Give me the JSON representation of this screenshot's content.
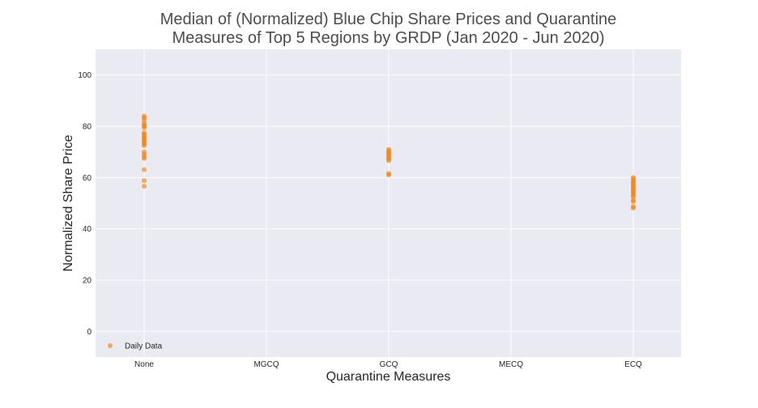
{
  "chart_data": {
    "type": "scatter",
    "title_line1": "Median of (Normalized) Blue Chip Share Prices and Quarantine",
    "title_line2": "Measures of Top 5 Regions by GRDP (Jan 2020 - Jun 2020)",
    "xlabel": "Quarantine Measures",
    "ylabel": "Normalized Share Price",
    "categories": [
      "None",
      "MGCQ",
      "GCQ",
      "MECQ",
      "ECQ"
    ],
    "ylim": [
      -10,
      110
    ],
    "yticks": [
      0,
      20,
      40,
      60,
      80,
      100
    ],
    "grid": true,
    "legend_position": "lower-left",
    "colors": {
      "point": "#f5830f",
      "plot_bg": "#eaeaf2",
      "grid": "#ffffff"
    },
    "series": [
      {
        "name": "Daily Data",
        "points": [
          {
            "x": "None",
            "y": 84.0
          },
          {
            "x": "None",
            "y": 83.3
          },
          {
            "x": "None",
            "y": 82.5
          },
          {
            "x": "None",
            "y": 81.2
          },
          {
            "x": "None",
            "y": 80.6
          },
          {
            "x": "None",
            "y": 80.0
          },
          {
            "x": "None",
            "y": 79.4
          },
          {
            "x": "None",
            "y": 77.5
          },
          {
            "x": "None",
            "y": 76.9
          },
          {
            "x": "None",
            "y": 76.2
          },
          {
            "x": "None",
            "y": 75.6
          },
          {
            "x": "None",
            "y": 75.0
          },
          {
            "x": "None",
            "y": 74.4
          },
          {
            "x": "None",
            "y": 73.7
          },
          {
            "x": "None",
            "y": 73.1
          },
          {
            "x": "None",
            "y": 72.5
          },
          {
            "x": "None",
            "y": 70.0
          },
          {
            "x": "None",
            "y": 69.1
          },
          {
            "x": "None",
            "y": 68.1
          },
          {
            "x": "None",
            "y": 67.5
          },
          {
            "x": "None",
            "y": 63.1
          },
          {
            "x": "None",
            "y": 58.8
          },
          {
            "x": "None",
            "y": 56.6
          },
          {
            "x": "GCQ",
            "y": 71.0
          },
          {
            "x": "GCQ",
            "y": 70.3
          },
          {
            "x": "GCQ",
            "y": 69.7
          },
          {
            "x": "GCQ",
            "y": 69.1
          },
          {
            "x": "GCQ",
            "y": 68.5
          },
          {
            "x": "GCQ",
            "y": 67.8
          },
          {
            "x": "GCQ",
            "y": 67.2
          },
          {
            "x": "GCQ",
            "y": 66.6
          },
          {
            "x": "GCQ",
            "y": 61.6
          },
          {
            "x": "GCQ",
            "y": 61.0
          },
          {
            "x": "ECQ",
            "y": 60.0
          },
          {
            "x": "ECQ",
            "y": 59.4
          },
          {
            "x": "ECQ",
            "y": 58.7
          },
          {
            "x": "ECQ",
            "y": 58.1
          },
          {
            "x": "ECQ",
            "y": 57.5
          },
          {
            "x": "ECQ",
            "y": 56.8
          },
          {
            "x": "ECQ",
            "y": 56.2
          },
          {
            "x": "ECQ",
            "y": 55.6
          },
          {
            "x": "ECQ",
            "y": 55.0
          },
          {
            "x": "ECQ",
            "y": 54.4
          },
          {
            "x": "ECQ",
            "y": 53.7
          },
          {
            "x": "ECQ",
            "y": 53.1
          },
          {
            "x": "ECQ",
            "y": 52.5
          },
          {
            "x": "ECQ",
            "y": 51.2
          },
          {
            "x": "ECQ",
            "y": 50.6
          },
          {
            "x": "ECQ",
            "y": 48.7
          },
          {
            "x": "ECQ",
            "y": 48.1
          }
        ]
      }
    ]
  }
}
